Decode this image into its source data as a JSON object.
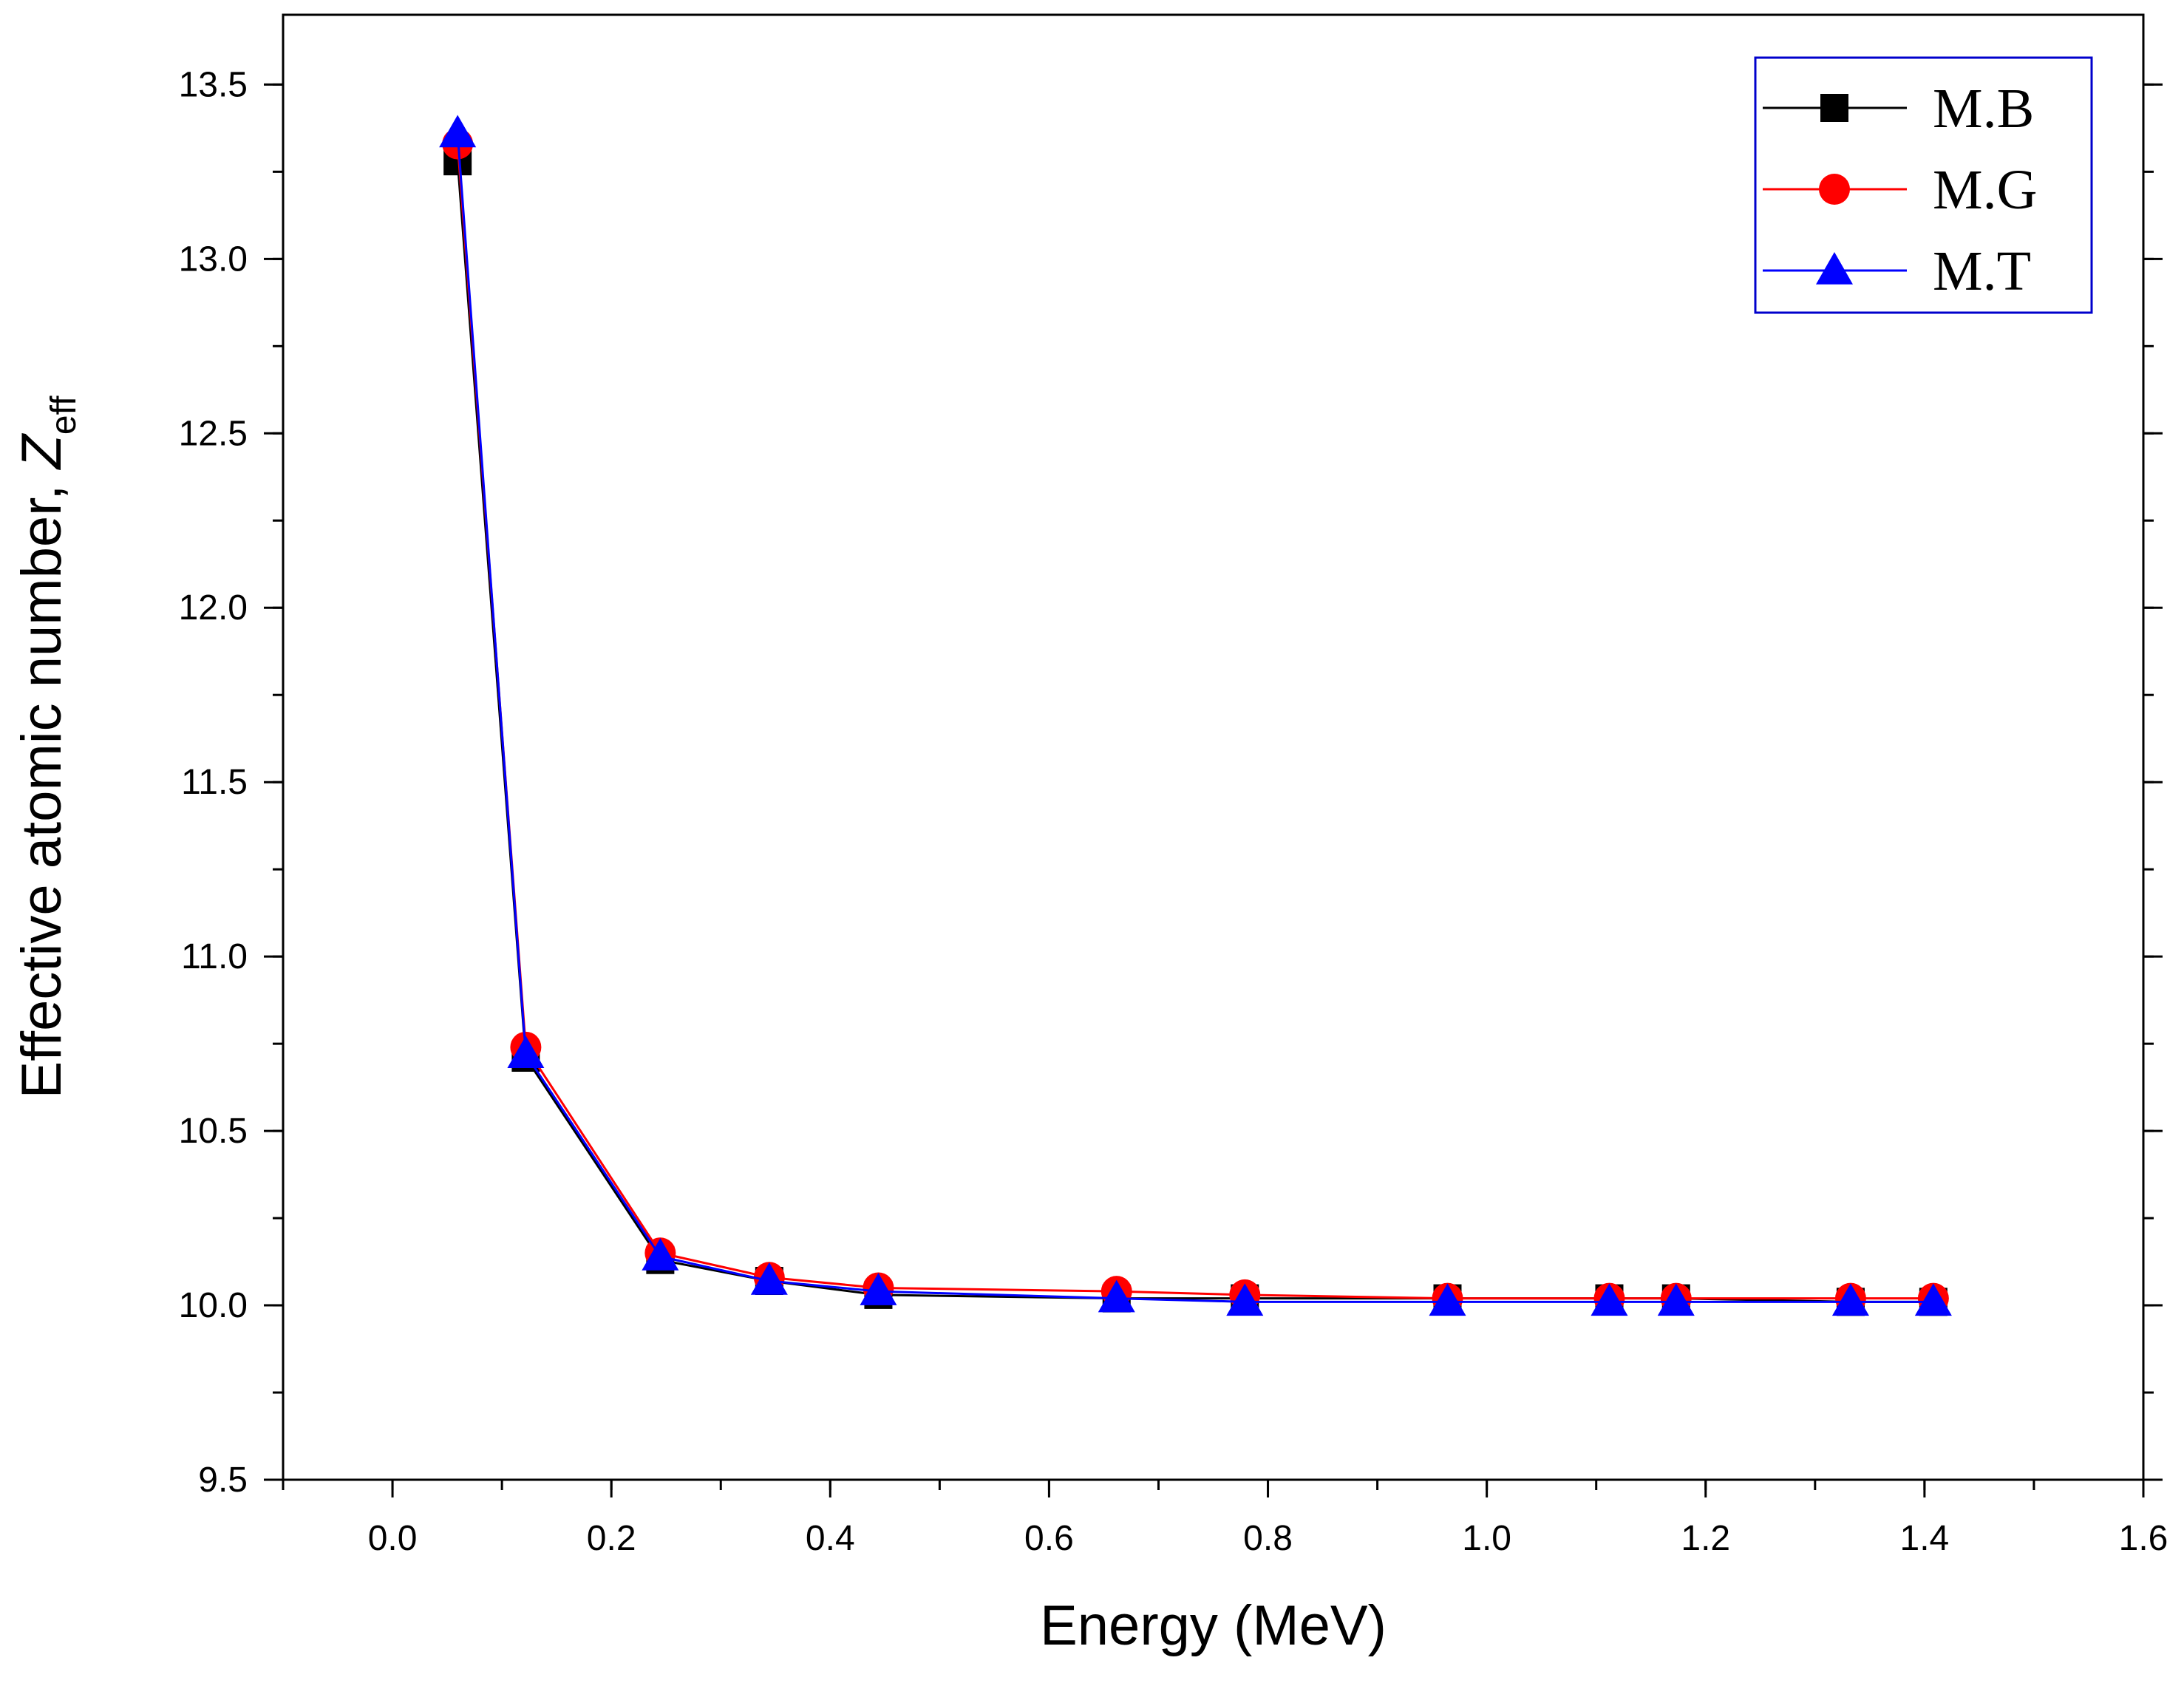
{
  "chart_data": {
    "type": "line",
    "xlabel": "Energy (MeV)",
    "ylabel_main": "Effective atomic number, ",
    "ylabel_symbol": "Z",
    "ylabel_subscript": "eff",
    "xlim": [
      -0.1,
      1.6
    ],
    "ylim": [
      9.5,
      13.7
    ],
    "x_ticks": [
      "0.0",
      "0.2",
      "0.4",
      "0.6",
      "0.8",
      "1.0",
      "1.2",
      "1.4",
      "1.6"
    ],
    "y_ticks": [
      "9.5",
      "10.0",
      "10.5",
      "11.0",
      "11.5",
      "12.0",
      "12.5",
      "13.0",
      "13.5"
    ],
    "legend_position": "top-right",
    "x": [
      0.0595,
      0.1218,
      0.2447,
      0.3443,
      0.444,
      0.6617,
      0.7789,
      0.9641,
      1.112,
      1.173,
      1.3325,
      1.4081
    ],
    "series": [
      {
        "name": "M.B",
        "color": "#000000",
        "marker": "square",
        "values": [
          13.28,
          10.71,
          10.13,
          10.07,
          10.03,
          10.02,
          10.02,
          10.02,
          10.02,
          10.02,
          10.01,
          10.01
        ]
      },
      {
        "name": "M.G",
        "color": "#ff0000",
        "marker": "circle",
        "values": [
          13.33,
          10.74,
          10.15,
          10.08,
          10.05,
          10.04,
          10.03,
          10.02,
          10.02,
          10.02,
          10.02,
          10.02
        ]
      },
      {
        "name": "M.T",
        "color": "#0000ff",
        "marker": "triangle",
        "values": [
          13.36,
          10.72,
          10.14,
          10.07,
          10.04,
          10.02,
          10.01,
          10.01,
          10.01,
          10.01,
          10.01,
          10.01
        ]
      }
    ]
  }
}
